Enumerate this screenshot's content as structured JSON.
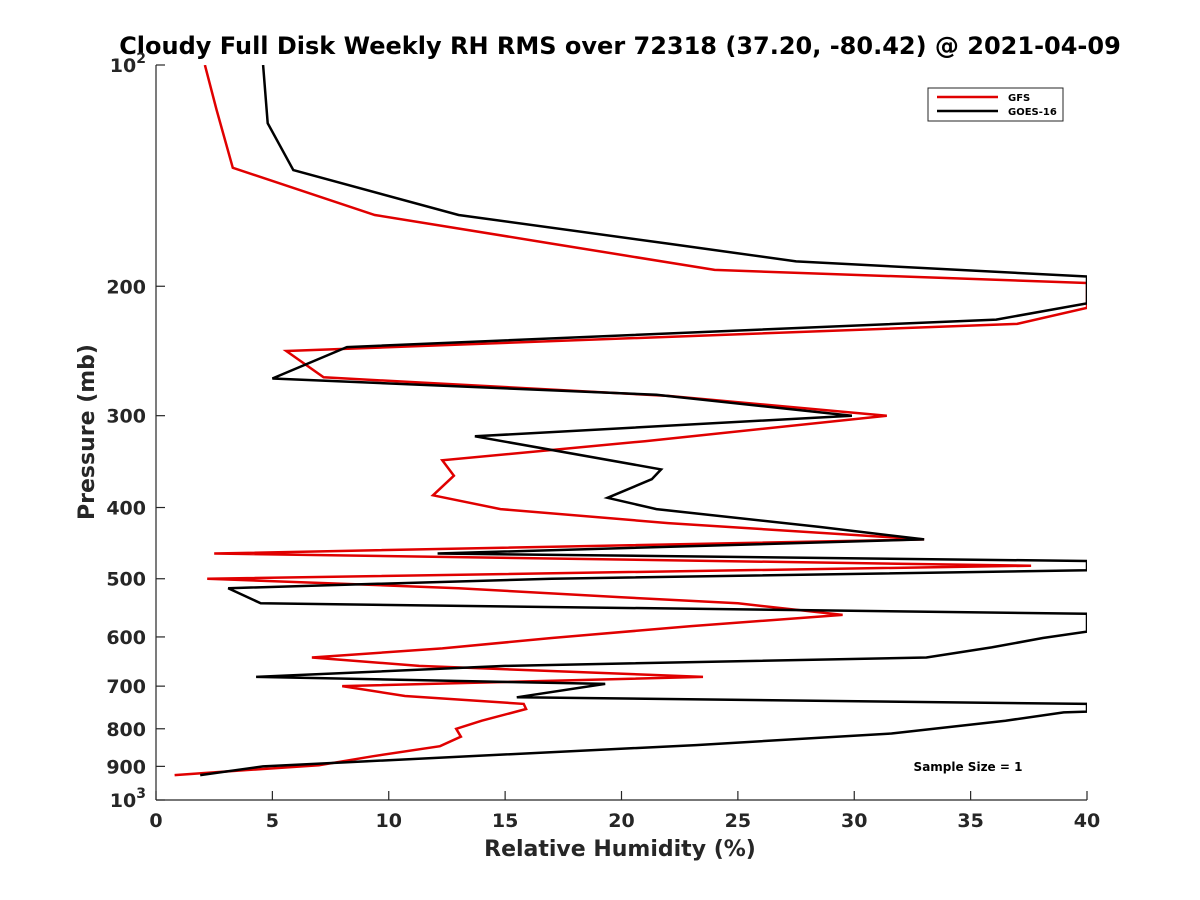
{
  "chart_data": {
    "type": "line",
    "title": "Cloudy Full Disk Weekly RH RMS over 72318 (37.20, -80.42) @ 2021-04-09",
    "xlabel": "Relative Humidity (%)",
    "ylabel": "Pressure (mb)",
    "xlim": [
      0,
      40
    ],
    "ylim": [
      100,
      1000
    ],
    "yscale": "log",
    "yreversed": true,
    "x_ticks": [
      0,
      5,
      10,
      15,
      20,
      25,
      30,
      35,
      40
    ],
    "x_tick_labels": [
      "0",
      "5",
      "10",
      "15",
      "20",
      "25",
      "30",
      "35",
      "40"
    ],
    "y_ticks": [
      100,
      200,
      300,
      400,
      500,
      600,
      700,
      800,
      900,
      1000
    ],
    "y_tick_labels": [
      {
        "base": "10",
        "exp": "2"
      },
      {
        "text": "200"
      },
      {
        "text": "300"
      },
      {
        "text": "400"
      },
      {
        "text": "500"
      },
      {
        "text": "600"
      },
      {
        "text": "700"
      },
      {
        "text": "800"
      },
      {
        "text": "900"
      },
      {
        "base": "10",
        "exp": "3"
      }
    ],
    "legend_position": "top-right",
    "annotation": "Sample Size = 1",
    "series": [
      {
        "name": "GFS",
        "color": "#e00000",
        "points": [
          [
            2.1,
            100
          ],
          [
            2.6,
            115
          ],
          [
            3.3,
            138
          ],
          [
            9.4,
            160
          ],
          [
            17,
            175
          ],
          [
            24,
            190
          ],
          [
            40,
            198
          ],
          [
            40,
            214
          ],
          [
            37,
            225
          ],
          [
            5.6,
            245
          ],
          [
            7.2,
            266
          ],
          [
            22,
            282
          ],
          [
            31.4,
            300
          ],
          [
            21,
            325
          ],
          [
            12.3,
            345
          ],
          [
            12.8,
            362
          ],
          [
            11.9,
            385
          ],
          [
            14.8,
            402
          ],
          [
            22,
            420
          ],
          [
            33,
            442
          ],
          [
            2.5,
            462
          ],
          [
            37.6,
            480
          ],
          [
            2.2,
            500
          ],
          [
            13,
            515
          ],
          [
            20,
            530
          ],
          [
            25,
            540
          ],
          [
            29.5,
            560
          ],
          [
            23,
            580
          ],
          [
            17,
            602
          ],
          [
            12.3,
            622
          ],
          [
            6.7,
            640
          ],
          [
            11.3,
            657
          ],
          [
            23.5,
            680
          ],
          [
            8,
            700
          ],
          [
            10.7,
            722
          ],
          [
            15.8,
            740
          ],
          [
            15.9,
            752
          ],
          [
            14,
            780
          ],
          [
            12.9,
            800
          ],
          [
            13.1,
            820
          ],
          [
            12.2,
            845
          ],
          [
            9.3,
            872
          ],
          [
            7,
            897
          ],
          [
            4,
            910
          ],
          [
            0.8,
            925
          ]
        ]
      },
      {
        "name": "GOES-16",
        "color": "#000000",
        "points": [
          [
            4.6,
            100
          ],
          [
            4.8,
            120
          ],
          [
            5.9,
            139
          ],
          [
            13,
            160
          ],
          [
            22,
            175
          ],
          [
            27.5,
            185
          ],
          [
            40,
            194
          ],
          [
            40,
            211
          ],
          [
            36.1,
            222
          ],
          [
            8.2,
            242
          ],
          [
            5,
            267
          ],
          [
            21.5,
            281
          ],
          [
            29.9,
            300
          ],
          [
            13.7,
            320
          ],
          [
            21.7,
            355
          ],
          [
            21.3,
            366
          ],
          [
            19.4,
            388
          ],
          [
            21.5,
            402
          ],
          [
            28.5,
            425
          ],
          [
            33,
            442
          ],
          [
            12.1,
            462
          ],
          [
            40,
            473
          ],
          [
            40,
            487
          ],
          [
            17,
            500
          ],
          [
            3.1,
            515
          ],
          [
            4.5,
            540
          ],
          [
            40,
            558
          ],
          [
            40,
            590
          ],
          [
            38.1,
            602
          ],
          [
            35.9,
            620
          ],
          [
            33.1,
            640
          ],
          [
            15,
            657
          ],
          [
            4.3,
            680
          ],
          [
            19.3,
            695
          ],
          [
            15.5,
            725
          ],
          [
            40,
            740
          ],
          [
            40,
            758
          ],
          [
            39,
            760
          ],
          [
            36.5,
            780
          ],
          [
            31.6,
            812
          ],
          [
            23.2,
            842
          ],
          [
            4.6,
            900
          ],
          [
            1.9,
            925
          ]
        ]
      }
    ]
  }
}
